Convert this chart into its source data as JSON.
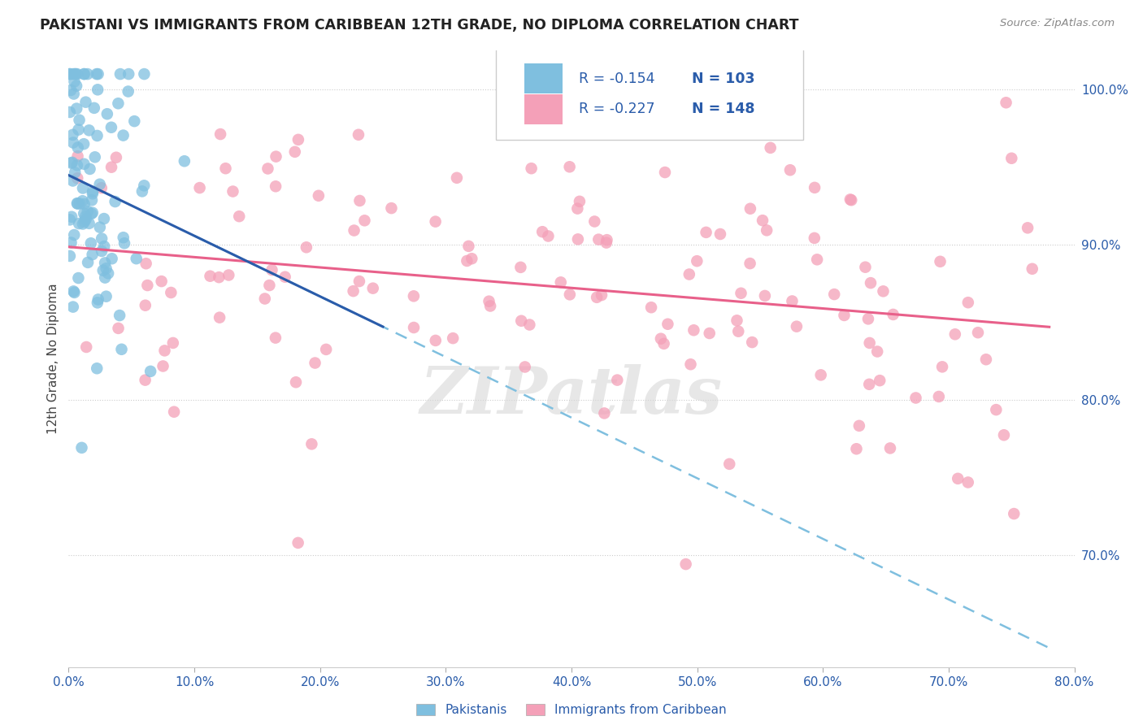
{
  "title": "PAKISTANI VS IMMIGRANTS FROM CARIBBEAN 12TH GRADE, NO DIPLOMA CORRELATION CHART",
  "source": "Source: ZipAtlas.com",
  "ylabel": "12th Grade, No Diploma",
  "watermark": "ZIPatlas",
  "blue_color": "#7fbfdf",
  "pink_color": "#f4a0b8",
  "blue_line_color": "#2a5caa",
  "pink_line_color": "#e8608a",
  "dashed_line_color": "#7fbfdf",
  "text_blue": "#2a5caa",
  "legend_r_blue": "R = -0.154",
  "legend_n_blue": "N = 103",
  "legend_r_pink": "R = -0.227",
  "legend_n_pink": "N = 148",
  "xmin": 0.0,
  "xmax": 0.8,
  "ymin": 0.628,
  "ymax": 1.025,
  "y_ticks": [
    0.7,
    0.8,
    0.9,
    1.0
  ],
  "x_ticks": [
    0.0,
    0.1,
    0.2,
    0.3,
    0.4,
    0.5,
    0.6,
    0.7,
    0.8
  ]
}
